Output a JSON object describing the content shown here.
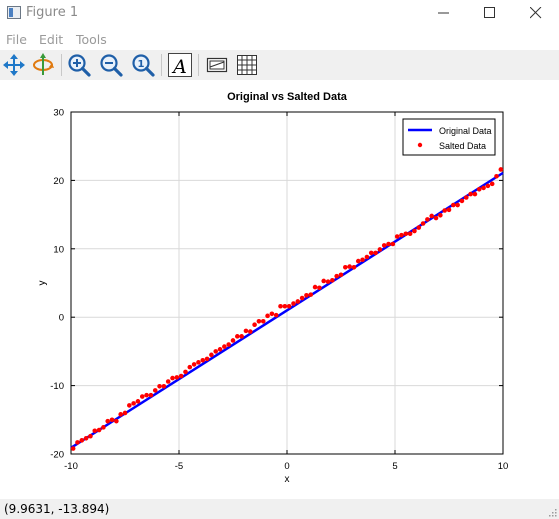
{
  "window": {
    "title": "Figure 1",
    "icon": "figure-window-icon",
    "controls": [
      "minimize-icon",
      "maximize-icon",
      "close-icon"
    ]
  },
  "menu": {
    "items": [
      "File",
      "Edit",
      "Tools"
    ]
  },
  "toolbar": {
    "buttons": [
      "pan-icon",
      "rotate-icon",
      "zoom-in-icon",
      "zoom-out-icon",
      "zoom-reset-icon",
      "text-icon",
      "legend-icon",
      "grid-icon"
    ],
    "text_glyph": "A"
  },
  "status": {
    "coordinates": "(9.9631, -13.894)"
  },
  "colors": {
    "line": "#0000ff",
    "markers": "#ff0000",
    "grid": "#d9d9d9"
  },
  "chart_data": {
    "type": "line",
    "title": "Original vs Salted Data",
    "xlabel": "x",
    "ylabel": "y",
    "xlim": [
      -10,
      10
    ],
    "ylim": [
      -20,
      30
    ],
    "xticks": [
      -10,
      -5,
      0,
      5,
      10
    ],
    "yticks": [
      -20,
      -10,
      0,
      10,
      20,
      30
    ],
    "grid": true,
    "legend": "top-right",
    "series": [
      {
        "name": "Original Data",
        "style": "line",
        "color": "#0000ff",
        "x": [
          -10,
          10
        ],
        "y": [
          -19.1,
          21.1
        ]
      },
      {
        "name": "Salted Data",
        "style": "markers",
        "color": "#ff0000",
        "x": [
          -9.9,
          -9.7,
          -9.5,
          -9.3,
          -9.1,
          -8.9,
          -8.7,
          -8.5,
          -8.3,
          -8.1,
          -7.9,
          -7.7,
          -7.5,
          -7.3,
          -7.1,
          -6.9,
          -6.7,
          -6.5,
          -6.3,
          -6.1,
          -5.9,
          -5.7,
          -5.5,
          -5.3,
          -5.1,
          -4.9,
          -4.7,
          -4.5,
          -4.3,
          -4.1,
          -3.9,
          -3.7,
          -3.5,
          -3.3,
          -3.1,
          -2.9,
          -2.7,
          -2.5,
          -2.3,
          -2.1,
          -1.9,
          -1.7,
          -1.5,
          -1.3,
          -1.1,
          -0.9,
          -0.7,
          -0.5,
          -0.3,
          -0.1,
          0.1,
          0.3,
          0.5,
          0.7,
          0.9,
          1.1,
          1.3,
          1.5,
          1.7,
          1.9,
          2.1,
          2.3,
          2.5,
          2.7,
          2.9,
          3.1,
          3.3,
          3.5,
          3.7,
          3.9,
          4.1,
          4.3,
          4.5,
          4.7,
          4.9,
          5.1,
          5.3,
          5.5,
          5.7,
          5.9,
          6.1,
          6.3,
          6.5,
          6.7,
          6.9,
          7.1,
          7.3,
          7.5,
          7.7,
          7.9,
          8.1,
          8.3,
          8.5,
          8.7,
          8.9,
          9.1,
          9.3,
          9.5,
          9.7,
          9.9
        ],
        "y": [
          -19.2,
          -18.3,
          -18.0,
          -17.7,
          -17.4,
          -16.6,
          -16.5,
          -16.1,
          -15.2,
          -15.0,
          -15.2,
          -14.2,
          -14.0,
          -12.9,
          -12.6,
          -12.3,
          -11.6,
          -11.4,
          -11.4,
          -10.7,
          -10.1,
          -10.1,
          -9.4,
          -8.9,
          -8.8,
          -8.6,
          -8.0,
          -7.3,
          -6.9,
          -6.6,
          -6.3,
          -6.1,
          -5.5,
          -5.0,
          -4.7,
          -4.3,
          -4.0,
          -3.4,
          -2.8,
          -2.8,
          -2.0,
          -2.1,
          -1.1,
          -0.6,
          -0.6,
          0.2,
          0.5,
          0.3,
          1.6,
          1.6,
          1.6,
          2.0,
          2.3,
          2.8,
          3.2,
          3.3,
          4.4,
          4.3,
          5.3,
          5.2,
          5.4,
          6.0,
          6.2,
          7.3,
          7.4,
          7.3,
          8.2,
          8.4,
          8.8,
          9.4,
          9.4,
          9.9,
          10.5,
          10.7,
          10.7,
          11.8,
          12.0,
          12.2,
          12.2,
          12.6,
          13.1,
          13.7,
          14.3,
          14.8,
          14.5,
          14.9,
          15.6,
          15.7,
          16.4,
          16.4,
          17.0,
          17.5,
          18.0,
          18.0,
          18.7,
          18.9,
          19.2,
          19.5,
          20.6,
          21.6
        ]
      }
    ]
  }
}
